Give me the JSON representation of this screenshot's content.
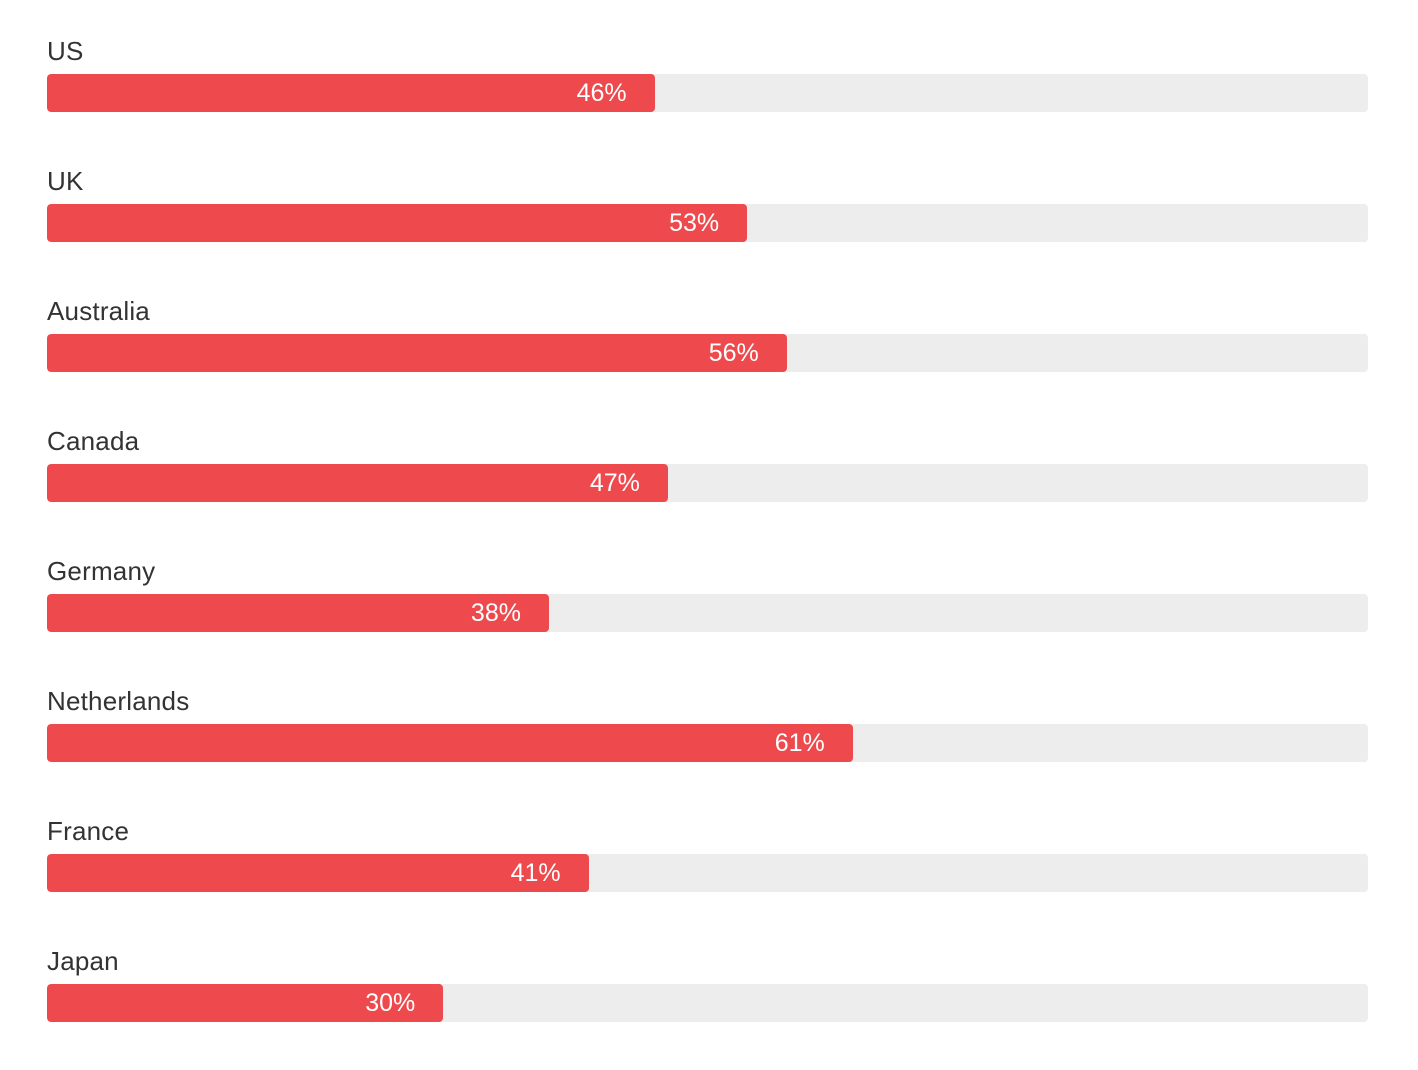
{
  "chart_data": {
    "type": "bar",
    "orientation": "horizontal",
    "title": "",
    "xlabel": "",
    "ylabel": "",
    "xlim": [
      0,
      100
    ],
    "grid": false,
    "legend": false,
    "categories": [
      "US",
      "UK",
      "Australia",
      "Canada",
      "Germany",
      "Netherlands",
      "France",
      "Japan"
    ],
    "values": [
      46,
      53,
      56,
      47,
      38,
      61,
      41,
      30
    ],
    "value_labels": [
      "46%",
      "53%",
      "56%",
      "47%",
      "38%",
      "61%",
      "41%",
      "30%"
    ],
    "colors": {
      "bar_fill": "#ee4a4d",
      "bar_track": "#ededed",
      "category_label": "#333333",
      "value_text": "#ffffff",
      "background": "#ffffff"
    }
  }
}
